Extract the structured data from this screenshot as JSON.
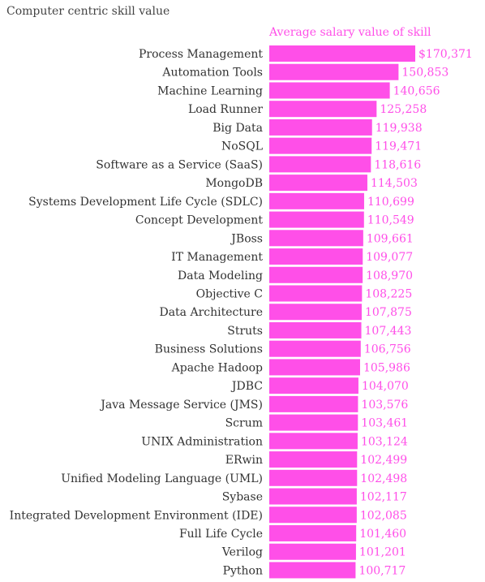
{
  "chart_data": {
    "type": "bar",
    "orientation": "horizontal",
    "title": "Computer centric skill value",
    "series": [
      {
        "name": "Average salary value of skill",
        "color": "#ff4fe8",
        "values": [
          170371,
          150853,
          140656,
          125258,
          119938,
          119471,
          118616,
          114503,
          110699,
          110549,
          109661,
          109077,
          108970,
          108225,
          107875,
          107443,
          106756,
          105986,
          104070,
          103576,
          103461,
          103124,
          102499,
          102498,
          102117,
          102085,
          101460,
          101201,
          100717
        ],
        "value_labels": [
          "$170,371",
          "150,853",
          "140,656",
          "125,258",
          "119,938",
          "119,471",
          "118,616",
          "114,503",
          "110,699",
          "110,549",
          "109,661",
          "109,077",
          "108,970",
          "108,225",
          "107,875",
          "107,443",
          "106,756",
          "105,986",
          "104,070",
          "103,576",
          "103,461",
          "103,124",
          "102,499",
          "102,498",
          "102,117",
          "102,085",
          "101,460",
          "101,201",
          "100,717"
        ]
      }
    ],
    "categories": [
      "Process Management",
      "Automation Tools",
      "Machine Learning",
      "Load Runner",
      "Big Data",
      "NoSQL",
      "Software as a Service (SaaS)",
      "MongoDB",
      "Systems Development Life Cycle (SDLC)",
      "Concept Development",
      "JBoss",
      "IT Management",
      "Data Modeling",
      "Objective C",
      "Data Architecture",
      "Struts",
      "Business Solutions",
      "Apache Hadoop",
      "JDBC",
      "Java Message Service (JMS)",
      "Scrum",
      "UNIX Administration",
      "ERwin",
      "Unified Modeling Language (UML)",
      "Sybase",
      "Integrated Development Environment (IDE)",
      "Full Life Cycle",
      "Verilog",
      "Python"
    ],
    "xlim": [
      0,
      170371
    ],
    "grid": false,
    "legend": "top"
  }
}
